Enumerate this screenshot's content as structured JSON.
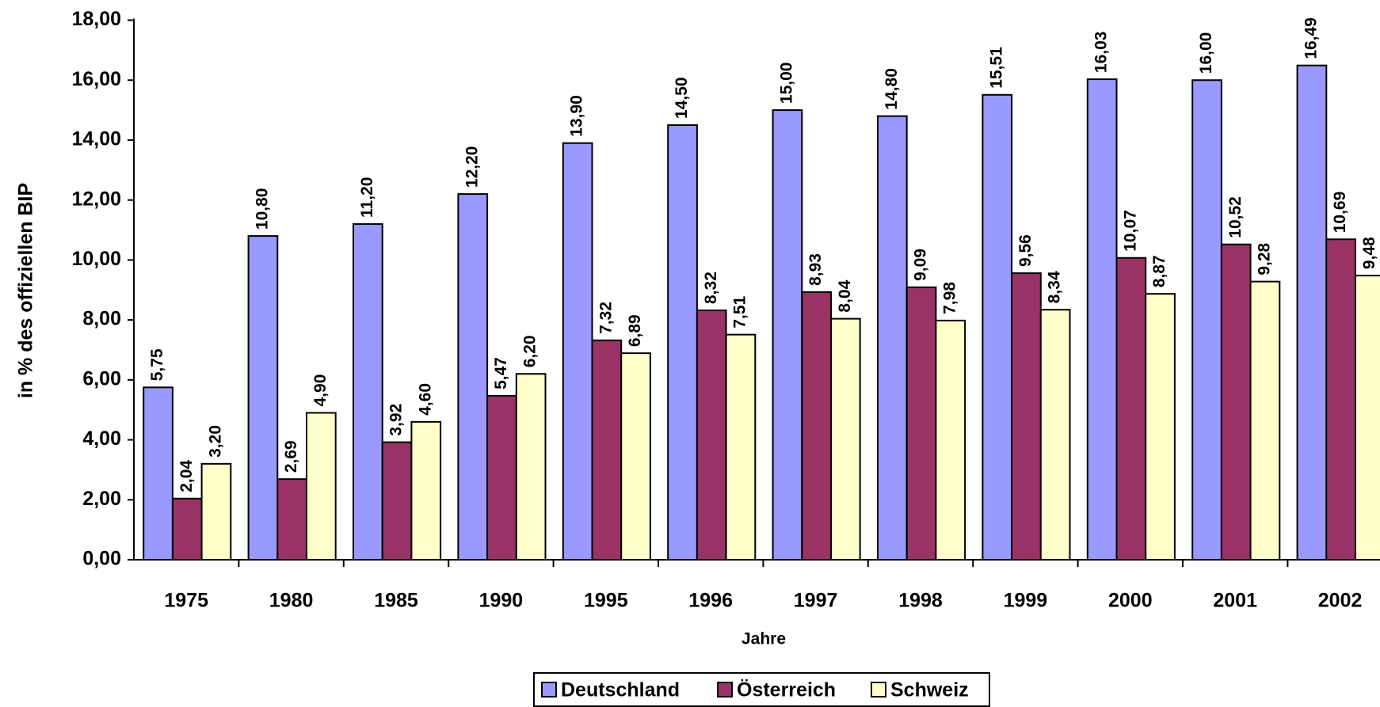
{
  "chart_data": {
    "type": "bar",
    "y_label": "in % des offiziellen BIP",
    "x_label": "Jahre",
    "categories": [
      "1975",
      "1980",
      "1985",
      "1990",
      "1995",
      "1996",
      "1997",
      "1998",
      "1999",
      "2000",
      "2001",
      "2002"
    ],
    "series": [
      {
        "name": "Deutschland",
        "color": "#9999ff",
        "values": [
          5.75,
          10.8,
          11.2,
          12.2,
          13.9,
          14.5,
          15.0,
          14.8,
          15.51,
          16.03,
          16.0,
          16.49
        ],
        "value_labels": [
          "5,75",
          "10,80",
          "11,20",
          "12,20",
          "13,90",
          "14,50",
          "15,00",
          "14,80",
          "15,51",
          "16,03",
          "16,00",
          "16,49"
        ]
      },
      {
        "name": "Österreich",
        "color": "#993366",
        "values": [
          2.04,
          2.69,
          3.92,
          5.47,
          7.32,
          8.32,
          8.93,
          9.09,
          9.56,
          10.07,
          10.52,
          10.69
        ],
        "value_labels": [
          "2,04",
          "2,69",
          "3,92",
          "5,47",
          "7,32",
          "8,32",
          "8,93",
          "9,09",
          "9,56",
          "10,07",
          "10,52",
          "10,69"
        ]
      },
      {
        "name": "Schweiz",
        "color": "#ffffcc",
        "values": [
          3.2,
          4.9,
          4.6,
          6.2,
          6.89,
          7.51,
          8.04,
          7.98,
          8.34,
          8.87,
          9.28,
          9.48
        ],
        "value_labels": [
          "3,20",
          "4,90",
          "4,60",
          "6,20",
          "6,89",
          "7,51",
          "8,04",
          "7,98",
          "8,34",
          "8,87",
          "9,28",
          "9,48"
        ]
      }
    ],
    "ylim": [
      0,
      18
    ],
    "yticks": [
      {
        "value": 0,
        "label": "0,00"
      },
      {
        "value": 2,
        "label": "2,00"
      },
      {
        "value": 4,
        "label": "4,00"
      },
      {
        "value": 6,
        "label": "6,00"
      },
      {
        "value": 8,
        "label": "8,00"
      },
      {
        "value": 10,
        "label": "10,00"
      },
      {
        "value": 12,
        "label": "12,00"
      },
      {
        "value": 14,
        "label": "14,00"
      },
      {
        "value": 16,
        "label": "16,00"
      },
      {
        "value": 18,
        "label": "18,00"
      }
    ],
    "grid": false,
    "legend": "bottom"
  }
}
